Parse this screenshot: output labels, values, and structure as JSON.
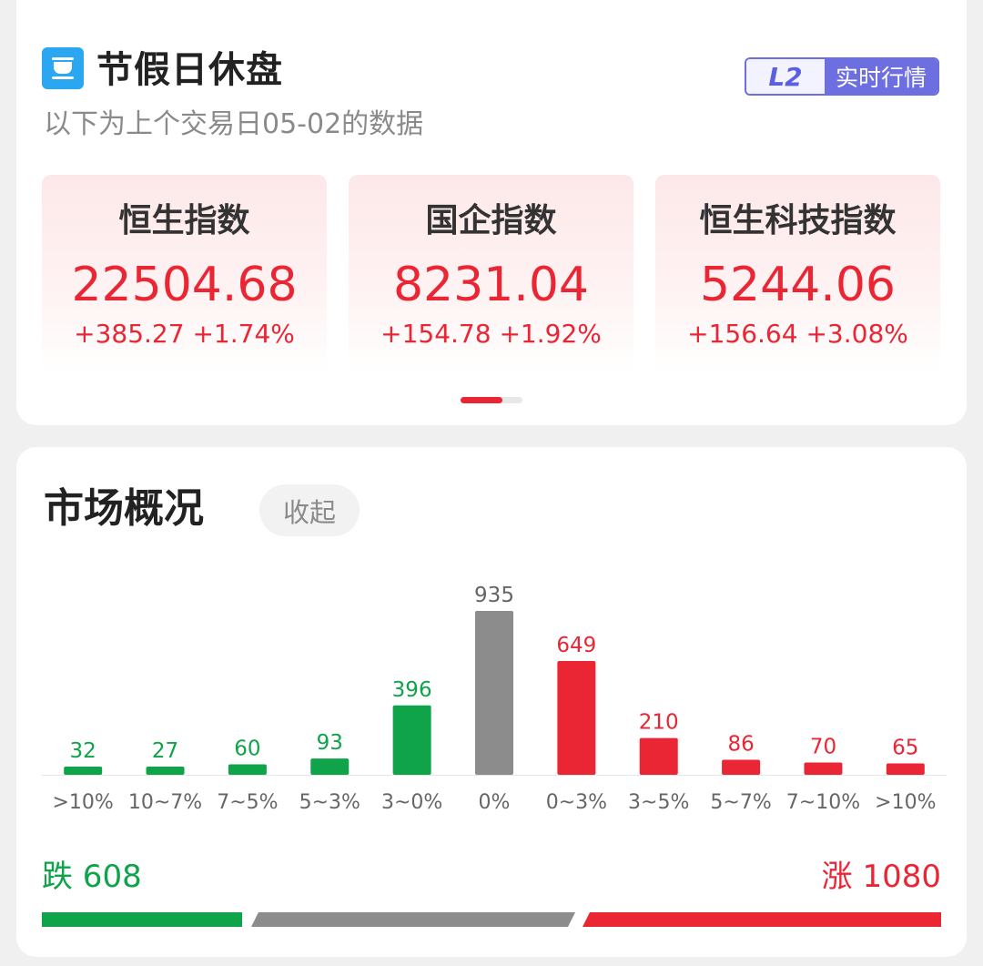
{
  "header": {
    "icon": "coffee-cup-icon",
    "title": "节假日休盘",
    "subtitle": "以下为上个交易日05-02的数据",
    "badge_l2": "L2",
    "badge_text": "实时行情"
  },
  "indices": [
    {
      "name": "恒生指数",
      "value": "22504.68",
      "change": "+385.27  +1.74%"
    },
    {
      "name": "国企指数",
      "value": "8231.04",
      "change": "+154.78  +1.92%"
    },
    {
      "name": "恒生科技指数",
      "value": "5244.06",
      "change": "+156.64  +3.08%"
    }
  ],
  "pager": {
    "current": 1,
    "total": 2
  },
  "market": {
    "title": "市场概况",
    "collapse_label": "收起",
    "fall_label": "跌 608",
    "rise_label": "涨 1080",
    "counts": {
      "fall": 608,
      "flat": 935,
      "rise": 1080
    }
  },
  "colors": {
    "up": "#ea2634",
    "down": "#0fa34a",
    "flat": "#8c8c8c",
    "brand": "#6d6fe0"
  },
  "chart_data": {
    "type": "bar",
    "categories": [
      ">10%",
      "10~7%",
      "7~5%",
      "5~3%",
      "3~0%",
      "0%",
      "0~3%",
      "3~5%",
      "5~7%",
      "7~10%",
      ">10%"
    ],
    "values": [
      32,
      27,
      60,
      93,
      396,
      935,
      649,
      210,
      86,
      70,
      65
    ],
    "bar_colors": [
      "#0fa34a",
      "#0fa34a",
      "#0fa34a",
      "#0fa34a",
      "#0fa34a",
      "#8c8c8c",
      "#ea2634",
      "#ea2634",
      "#ea2634",
      "#ea2634",
      "#ea2634"
    ],
    "title": "",
    "xlabel": "",
    "ylabel": "",
    "ylim": [
      0,
      935
    ],
    "grid": false,
    "data_labels": true
  }
}
